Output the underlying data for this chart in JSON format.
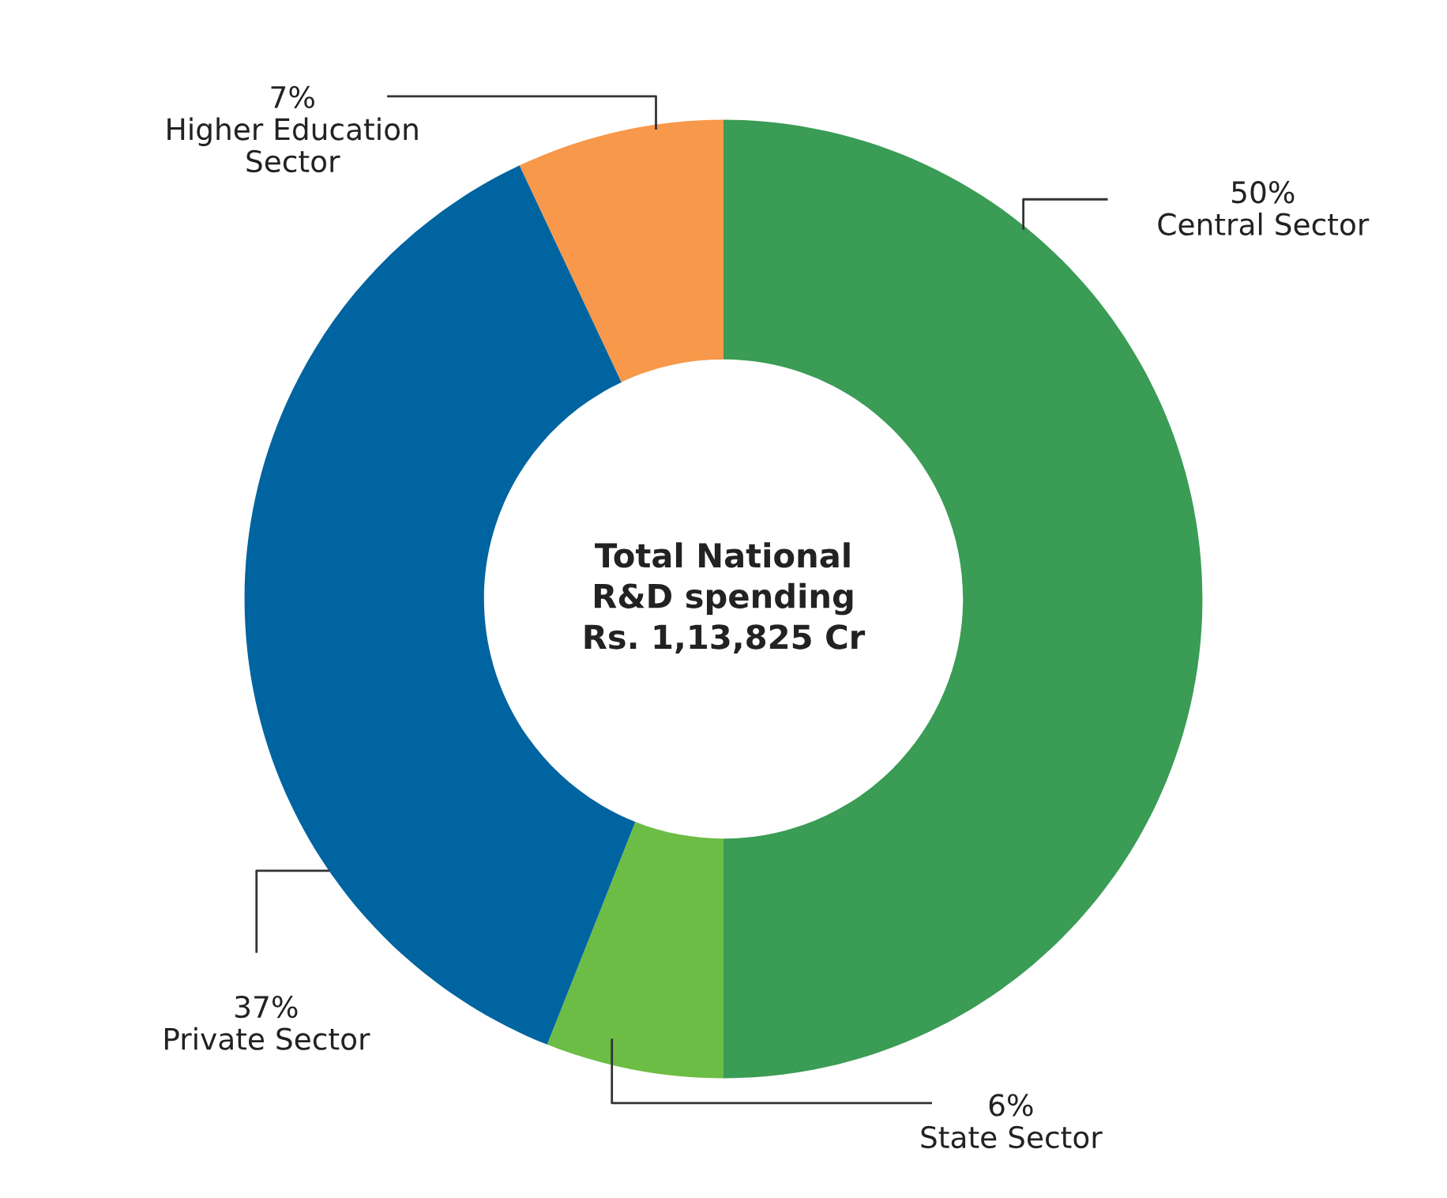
{
  "chart_data": {
    "type": "donut",
    "categories": [
      "Central Sector",
      "State Sector",
      "Private Sector",
      "Higher Education\nSector"
    ],
    "values": [
      50,
      6,
      37,
      7
    ],
    "value_labels": [
      "50%",
      "6%",
      "37%",
      "7%"
    ],
    "colors": [
      "#3a9c55",
      "#6cbd45",
      "#0064a0",
      "#f7984a"
    ],
    "annotations": [
      "Total National\nR&D spending\nRs. 1,13,825 Cr"
    ],
    "legend": false
  }
}
